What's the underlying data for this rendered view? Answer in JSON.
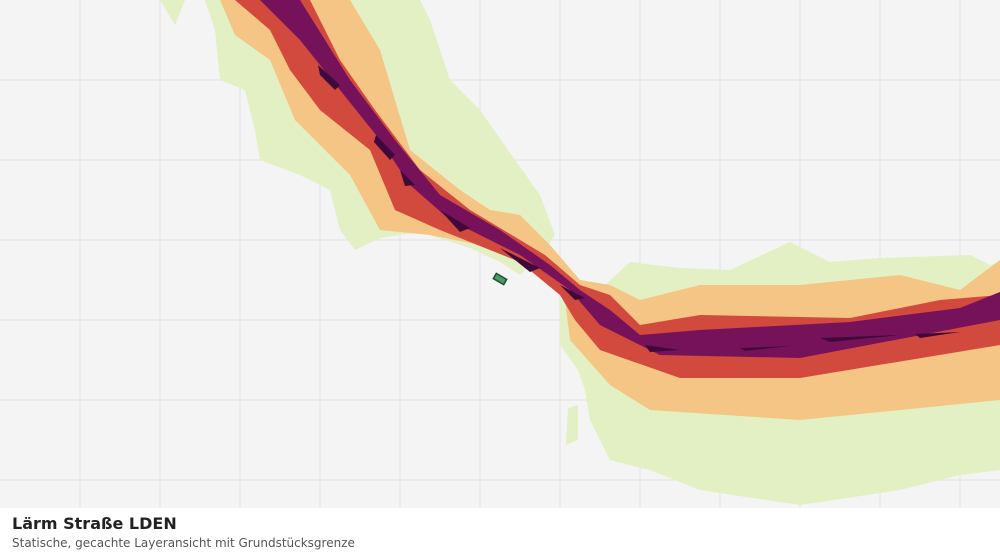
{
  "caption": {
    "title": "Lärm Straße LDEN",
    "subtitle": "Statische, gecachte Layeransicht mit Grundstücksgrenze"
  }
}
